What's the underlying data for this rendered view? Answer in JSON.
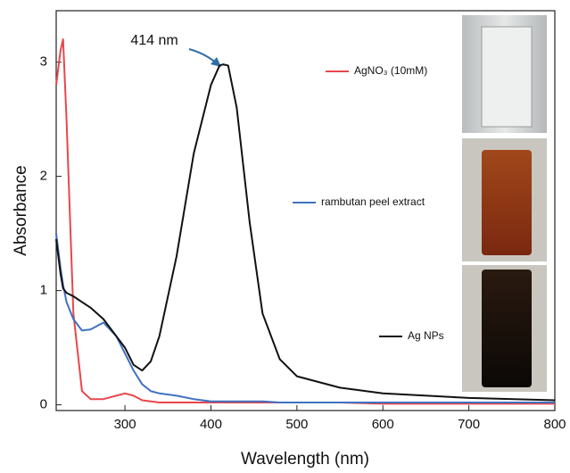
{
  "chart_data": {
    "type": "line",
    "x_label": "Wavelength (nm)",
    "y_label": "Absorbance",
    "annotation": "414 nm",
    "x": [
      220,
      225,
      228,
      232,
      240,
      250,
      260,
      275,
      290,
      300,
      310,
      320,
      330,
      340,
      360,
      380,
      400,
      410,
      414,
      420,
      430,
      445,
      460,
      480,
      500,
      550,
      600,
      700,
      800
    ],
    "series": [
      {
        "name": "AgNO₃ (10mM)",
        "color": "#e8474b",
        "values": [
          2.8,
          3.1,
          3.2,
          2.5,
          0.8,
          0.12,
          0.05,
          0.05,
          0.08,
          0.1,
          0.08,
          0.04,
          0.03,
          0.02,
          0.02,
          0.02,
          0.02,
          0.02,
          0.02,
          0.02,
          0.02,
          0.02,
          0.02,
          0.02,
          0.02,
          0.02,
          0.01,
          0.01,
          0.01
        ]
      },
      {
        "name": "rambutan peel extract",
        "color": "#3f72c0",
        "values": [
          1.5,
          1.2,
          1.05,
          0.9,
          0.75,
          0.65,
          0.66,
          0.72,
          0.6,
          0.45,
          0.3,
          0.18,
          0.12,
          0.1,
          0.08,
          0.05,
          0.03,
          0.03,
          0.03,
          0.03,
          0.03,
          0.03,
          0.03,
          0.02,
          0.02,
          0.02,
          0.02,
          0.02,
          0.02
        ]
      },
      {
        "name": "Ag NPs",
        "color": "#111111",
        "values": [
          1.45,
          1.15,
          1.02,
          0.98,
          0.95,
          0.9,
          0.85,
          0.75,
          0.6,
          0.5,
          0.35,
          0.3,
          0.38,
          0.6,
          1.3,
          2.2,
          2.8,
          2.97,
          2.98,
          2.97,
          2.6,
          1.6,
          0.8,
          0.4,
          0.25,
          0.15,
          0.1,
          0.06,
          0.04
        ]
      }
    ],
    "xlim": [
      220,
      800
    ],
    "ylim": [
      -0.05,
      3.45
    ],
    "xticks": [
      300,
      400,
      500,
      600,
      700,
      800
    ],
    "yticks": [
      0,
      1,
      2,
      3
    ]
  }
}
